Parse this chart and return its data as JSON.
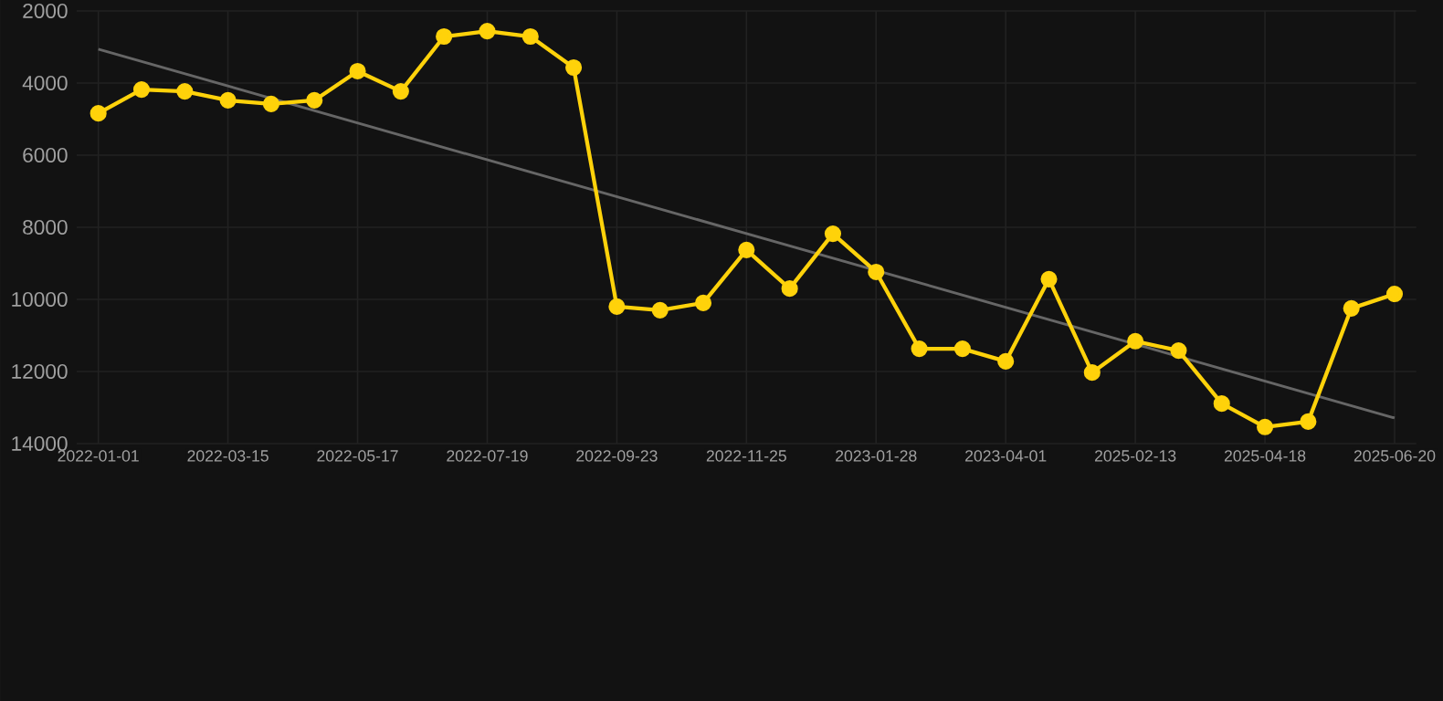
{
  "chart_data": {
    "type": "line",
    "categories": [
      "2022-01-01",
      null,
      null,
      "2022-03-15",
      null,
      null,
      "2022-05-17",
      null,
      null,
      "2022-07-19",
      null,
      null,
      "2022-09-23",
      null,
      null,
      "2022-11-25",
      null,
      null,
      "2023-01-28",
      null,
      null,
      "2023-04-01",
      null,
      null,
      "2025-02-13",
      null,
      null,
      "2025-04-18",
      null,
      null,
      "2025-06-20"
    ],
    "series": [
      {
        "color": "#ffd20a",
        "values": [
          4840,
          4180,
          4230,
          4480,
          4580,
          4480,
          3670,
          4230,
          2710,
          2560,
          2710,
          3570,
          10200,
          10300,
          10100,
          8630,
          9700,
          8180,
          9240,
          11370,
          11370,
          11720,
          9440,
          12030,
          11160,
          11420,
          12890,
          13540,
          13390,
          10250,
          9850
        ]
      },
      {
        "type": "line",
        "color": "#666666",
        "marker": "none",
        "values": [
          3060,
          null,
          null,
          null,
          null,
          null,
          null,
          null,
          null,
          null,
          null,
          null,
          null,
          null,
          null,
          null,
          null,
          null,
          null,
          null,
          null,
          null,
          null,
          null,
          null,
          null,
          null,
          null,
          null,
          null,
          13290
        ]
      }
    ],
    "ylim": [
      14000,
      2000
    ],
    "yticks": [
      2000,
      4000,
      6000,
      8000,
      10000,
      12000,
      14000
    ],
    "grid": true,
    "marker": "circle",
    "line_style": "solid",
    "legend": false
  }
}
